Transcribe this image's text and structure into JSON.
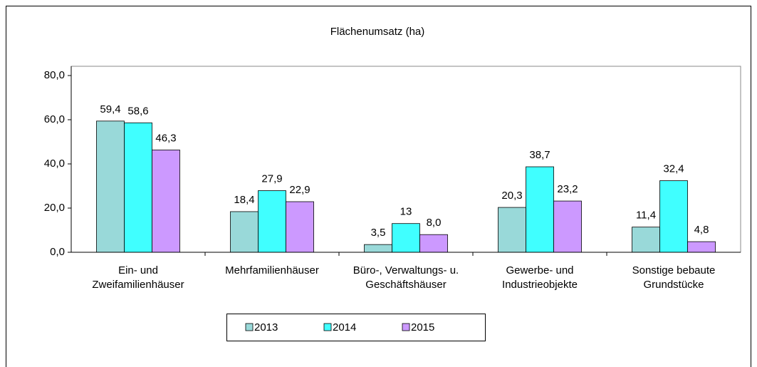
{
  "chart_data": {
    "type": "bar",
    "title": "Flächenumsatz  (ha)",
    "categories": [
      [
        "Ein- und",
        "Zweifamilienhäuser"
      ],
      [
        "Mehrfamilienhäuser"
      ],
      [
        "Büro-, Verwaltungs- u.",
        "Geschäftshäuser"
      ],
      [
        "Gewerbe- und",
        "Industrieobjekte"
      ],
      [
        "Sonstige bebaute",
        "Grundstücke"
      ]
    ],
    "series": [
      {
        "name": "2013",
        "color": "#99d9d9",
        "values": [
          59.4,
          18.4,
          3.5,
          20.3,
          11.4
        ],
        "value_labels": [
          "59,4",
          "18,4",
          "3,5",
          "20,3",
          "11,4"
        ]
      },
      {
        "name": "2014",
        "color": "#40ffff",
        "values": [
          58.6,
          27.9,
          13,
          38.7,
          32.4
        ],
        "value_labels": [
          "58,6",
          "27,9",
          "13",
          "38,7",
          "32,4"
        ]
      },
      {
        "name": "2015",
        "color": "#cc99ff",
        "values": [
          46.3,
          22.9,
          8.0,
          23.2,
          4.8
        ],
        "value_labels": [
          "46,3",
          "22,9",
          "8,0",
          "23,2",
          "4,8"
        ]
      }
    ],
    "ylim": [
      0,
      80
    ],
    "yticks": [
      {
        "value": 0,
        "label": "0,0"
      },
      {
        "value": 20,
        "label": "20,0"
      },
      {
        "value": 40,
        "label": "40,0"
      },
      {
        "value": 60,
        "label": "60,0"
      },
      {
        "value": 80,
        "label": "80,0"
      }
    ],
    "legend": "bottom"
  }
}
